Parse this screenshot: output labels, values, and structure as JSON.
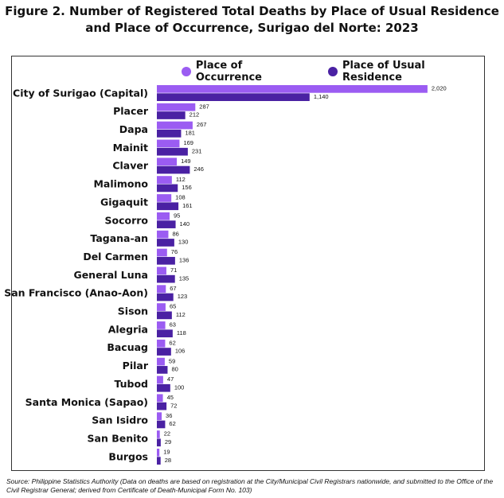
{
  "title_line1": "Figure 2. Number of Registered Total Deaths by Place of Usual Residence",
  "title_line2": "and Place of Occurrence, Surigao del Norte: 2023",
  "source": "Source: Philippine Statistics Authority (Data on deaths are based on registration at the City/Municipal Civil Registrars nationwide, and submitted to the Office of the Civil Registrar General; derived from Certificate of Death-Municipal Form No. 103)",
  "colors": {
    "occurrence": "#9b5cf2",
    "residence": "#4a21a3"
  },
  "chart_data": {
    "type": "bar",
    "orientation": "horizontal",
    "legend_position": "top",
    "xlim": [
      0,
      2080
    ],
    "categories": [
      "City of Surigao (Capital)",
      "Placer",
      "Dapa",
      "Mainit",
      "Claver",
      "Malimono",
      "Gigaquit",
      "Socorro",
      "Tagana-an",
      "Del Carmen",
      "General Luna",
      "San Francisco (Anao-Aon)",
      "Sison",
      "Alegria",
      "Bacuag",
      "Pilar",
      "Tubod",
      "Santa Monica (Sapao)",
      "San Isidro",
      "San Benito",
      "Burgos"
    ],
    "series": [
      {
        "name": "Place of Occurrence",
        "values": [
          2020,
          287,
          267,
          169,
          149,
          112,
          108,
          95,
          86,
          76,
          71,
          67,
          65,
          63,
          62,
          59,
          47,
          45,
          36,
          22,
          19
        ],
        "labels": [
          "2,020",
          "287",
          "267",
          "169",
          "149",
          "112",
          "108",
          "95",
          "86",
          "76",
          "71",
          "67",
          "65",
          "63",
          "62",
          "59",
          "47",
          "45",
          "36",
          "22",
          "19"
        ]
      },
      {
        "name": "Place of Usual Residence",
        "values": [
          1140,
          212,
          181,
          231,
          246,
          156,
          161,
          140,
          130,
          136,
          135,
          123,
          112,
          118,
          106,
          80,
          100,
          72,
          62,
          29,
          28
        ],
        "labels": [
          "1,140",
          "212",
          "181",
          "231",
          "246",
          "156",
          "161",
          "140",
          "130",
          "136",
          "135",
          "123",
          "112",
          "118",
          "106",
          "80",
          "100",
          "72",
          "62",
          "29",
          "28"
        ]
      }
    ]
  }
}
